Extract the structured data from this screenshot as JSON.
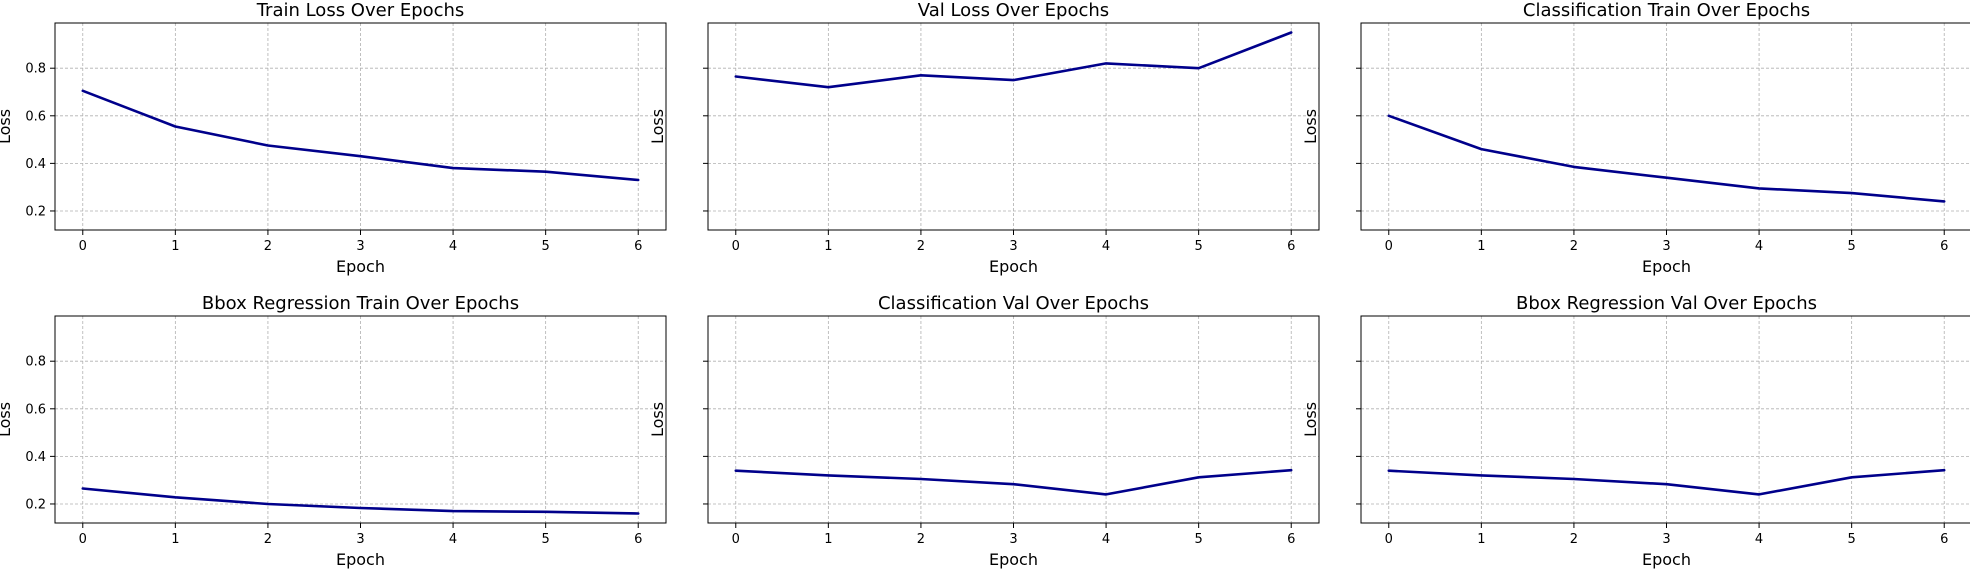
{
  "line_color": "#00008b",
  "chart_data": [
    {
      "type": "line",
      "title": "Train Loss Over Epochs",
      "xlabel": "Epoch",
      "ylabel": "Loss",
      "x": [
        0,
        1,
        2,
        3,
        4,
        5,
        6
      ],
      "series": [
        {
          "values": [
            0.705,
            0.555,
            0.475,
            0.43,
            0.38,
            0.365,
            0.33
          ]
        }
      ],
      "xlim": [
        -0.3,
        6.3
      ],
      "ylim": [
        0.12,
        0.99
      ],
      "yticks": [
        0.2,
        0.4,
        0.6,
        0.8
      ],
      "show_ytick_labels": true,
      "grid": true
    },
    {
      "type": "line",
      "title": "Val Loss Over Epochs",
      "xlabel": "Epoch",
      "ylabel": "Loss",
      "x": [
        0,
        1,
        2,
        3,
        4,
        5,
        6
      ],
      "series": [
        {
          "values": [
            0.765,
            0.72,
            0.77,
            0.75,
            0.82,
            0.8,
            0.95
          ]
        }
      ],
      "xlim": [
        -0.3,
        6.3
      ],
      "ylim": [
        0.12,
        0.99
      ],
      "yticks": [
        0.2,
        0.4,
        0.6,
        0.8
      ],
      "show_ytick_labels": false,
      "grid": true
    },
    {
      "type": "line",
      "title": "Classification Train Over Epochs",
      "xlabel": "Epoch",
      "ylabel": "Loss",
      "x": [
        0,
        1,
        2,
        3,
        4,
        5,
        6
      ],
      "series": [
        {
          "values": [
            0.6,
            0.46,
            0.385,
            0.34,
            0.295,
            0.275,
            0.24
          ]
        }
      ],
      "xlim": [
        -0.3,
        6.3
      ],
      "ylim": [
        0.12,
        0.99
      ],
      "yticks": [
        0.2,
        0.4,
        0.6,
        0.8
      ],
      "show_ytick_labels": false,
      "grid": true
    },
    {
      "type": "line",
      "title": "Bbox Regression Train Over Epochs",
      "xlabel": "Epoch",
      "ylabel": "Loss",
      "x": [
        0,
        1,
        2,
        3,
        4,
        5,
        6
      ],
      "series": [
        {
          "values": [
            0.265,
            0.228,
            0.2,
            0.183,
            0.17,
            0.167,
            0.16
          ]
        }
      ],
      "xlim": [
        -0.3,
        6.3
      ],
      "ylim": [
        0.12,
        0.99
      ],
      "yticks": [
        0.2,
        0.4,
        0.6,
        0.8
      ],
      "show_ytick_labels": true,
      "grid": true
    },
    {
      "type": "line",
      "title": "Classification Val Over Epochs",
      "xlabel": "Epoch",
      "ylabel": "Loss",
      "x": [
        0,
        1,
        2,
        3,
        4,
        5,
        6
      ],
      "series": [
        {
          "values": [
            0.34,
            0.32,
            0.305,
            0.283,
            0.24,
            0.312,
            0.342
          ]
        }
      ],
      "xlim": [
        -0.3,
        6.3
      ],
      "ylim": [
        0.12,
        0.99
      ],
      "yticks": [
        0.2,
        0.4,
        0.6,
        0.8
      ],
      "show_ytick_labels": false,
      "grid": true
    },
    {
      "type": "line",
      "title": "Bbox Regression Val Over Epochs",
      "xlabel": "Epoch",
      "ylabel": "Loss",
      "x": [
        0,
        1,
        2,
        3,
        4,
        5,
        6
      ],
      "series": [
        {
          "values": [
            0.34,
            0.32,
            0.305,
            0.283,
            0.24,
            0.312,
            0.342
          ]
        }
      ],
      "xlim": [
        -0.3,
        6.3
      ],
      "ylim": [
        0.12,
        0.99
      ],
      "yticks": [
        0.2,
        0.4,
        0.6,
        0.8
      ],
      "show_ytick_labels": false,
      "grid": true
    }
  ]
}
